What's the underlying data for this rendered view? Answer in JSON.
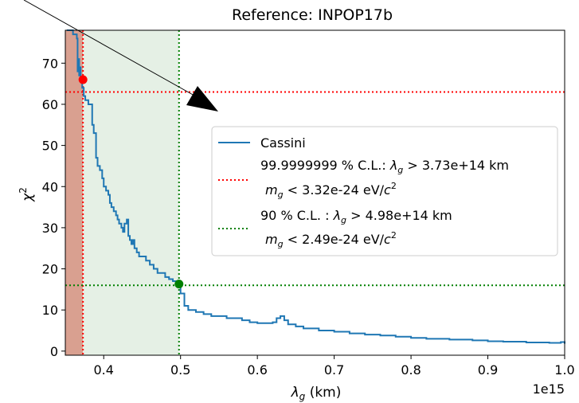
{
  "chart_data": {
    "type": "line",
    "title": "Reference: INPOP17b",
    "xlabel_main": "λ",
    "xlabel_sub": "g",
    "xlabel_unit": " (km)",
    "ylabel_main": "χ",
    "ylabel_sup": "2",
    "x_offset_label": "1e15",
    "xlim": [
      0.35,
      1.0
    ],
    "ylim": [
      -1,
      78
    ],
    "x_ticks": [
      0.4,
      0.5,
      0.6,
      0.7,
      0.8,
      0.9,
      1.0
    ],
    "x_tick_labels": [
      "0.4",
      "0.5",
      "0.6",
      "0.7",
      "0.8",
      "0.9",
      "1.0"
    ],
    "y_ticks": [
      0,
      10,
      20,
      30,
      40,
      50,
      60,
      70
    ],
    "y_tick_labels": [
      "0",
      "10",
      "20",
      "30",
      "40",
      "50",
      "60",
      "70"
    ],
    "grid": false,
    "legend_position": "center-right",
    "colors": {
      "series": "#1f77b4",
      "red_line": "#ff0000",
      "green_line": "#008000",
      "red_region": "#d9a090",
      "green_region": "#e5f0e5"
    },
    "shaded_regions": [
      {
        "x_from": 0.35,
        "x_to": 0.373,
        "color": "red"
      },
      {
        "x_from": 0.373,
        "x_to": 0.498,
        "color": "green"
      }
    ],
    "threshold_lines": [
      {
        "name": "99.9999999 % C.L.",
        "x": 0.373,
        "y": 63,
        "color": "red"
      },
      {
        "name": "90 % C.L.",
        "x": 0.498,
        "y": 16,
        "color": "green"
      }
    ],
    "markers": [
      {
        "x": 0.373,
        "y": 66,
        "color": "red"
      },
      {
        "x": 0.498,
        "y": 16.3,
        "color": "green"
      }
    ],
    "series": [
      {
        "name": "Cassini",
        "x": [
          0.352,
          0.36,
          0.365,
          0.366,
          0.367,
          0.368,
          0.369,
          0.37,
          0.372,
          0.374,
          0.376,
          0.38,
          0.385,
          0.387,
          0.39,
          0.392,
          0.395,
          0.398,
          0.4,
          0.403,
          0.406,
          0.408,
          0.41,
          0.413,
          0.416,
          0.418,
          0.42,
          0.423,
          0.425,
          0.427,
          0.43,
          0.432,
          0.434,
          0.436,
          0.438,
          0.44,
          0.443,
          0.446,
          0.45,
          0.455,
          0.46,
          0.465,
          0.47,
          0.475,
          0.48,
          0.485,
          0.49,
          0.495,
          0.498,
          0.5,
          0.505,
          0.51,
          0.52,
          0.53,
          0.54,
          0.55,
          0.56,
          0.57,
          0.58,
          0.59,
          0.6,
          0.61,
          0.62,
          0.625,
          0.63,
          0.635,
          0.64,
          0.65,
          0.66,
          0.67,
          0.68,
          0.7,
          0.72,
          0.74,
          0.76,
          0.78,
          0.8,
          0.82,
          0.85,
          0.88,
          0.9,
          0.92,
          0.95,
          0.98,
          0.995,
          1.0
        ],
        "y": [
          78,
          77,
          76,
          68,
          71,
          67,
          69,
          66,
          64,
          62,
          61,
          60,
          55,
          53,
          47,
          45,
          44,
          42,
          40,
          39,
          38,
          36,
          35,
          34,
          33,
          32,
          31,
          30,
          29,
          31,
          32,
          28,
          27,
          26,
          27,
          25,
          24,
          23,
          23,
          22,
          21,
          20,
          19,
          19,
          18,
          17.5,
          17,
          16.5,
          16.3,
          14,
          11,
          10,
          9.5,
          9,
          8.5,
          8.5,
          8,
          8,
          7.5,
          7,
          6.8,
          6.8,
          7,
          8,
          8.5,
          7.5,
          6.5,
          6,
          5.5,
          5.5,
          5,
          4.7,
          4.3,
          4,
          3.8,
          3.5,
          3.2,
          3,
          2.8,
          2.6,
          2.4,
          2.3,
          2.1,
          2,
          2.2,
          1.8
        ]
      }
    ],
    "legend": {
      "series_label": "Cassini",
      "red_line1": "99.9999999 % C.L.: ",
      "red_line1_sym": "λ",
      "red_line1_sub": "g",
      "red_line1_tail": " > 3.73e+14 km",
      "red_line2_sym": "m",
      "red_line2_sub": "g",
      "red_line2_tail": " < 3.32e-24 eV/",
      "red_line2_c": "c",
      "red_line2_sup": "2",
      "green_line1": "90 % C.L. : ",
      "green_line1_sym": "λ",
      "green_line1_sub": "g",
      "green_line1_tail": " > 4.98e+14 km",
      "green_line2_sym": "m",
      "green_line2_sub": "g",
      "green_line2_tail": " < 2.49e-24 eV/",
      "green_line2_c": "c",
      "green_line2_sup": "2"
    }
  }
}
